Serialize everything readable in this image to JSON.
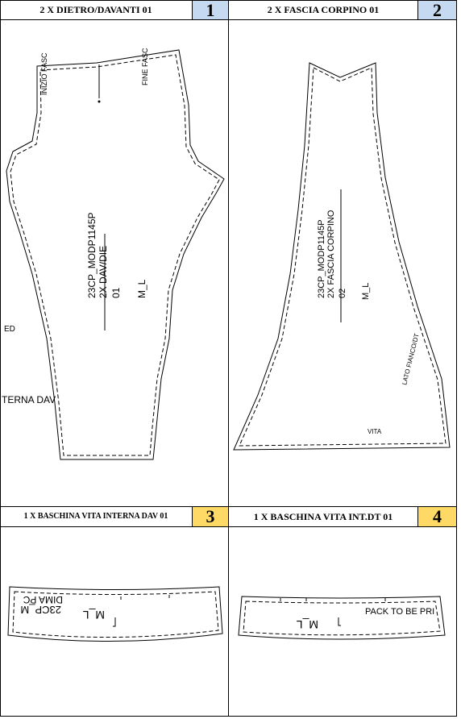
{
  "panels": [
    {
      "title": "2 X DIETRO/DAVANTI 01",
      "number": "1",
      "number_bg": "#c5d9f1"
    },
    {
      "title": "2 X FASCIA CORPINO 01",
      "number": "2",
      "number_bg": "#c5d9f1"
    },
    {
      "title": "1 X BASCHINA VITA INTERNA DAV 01",
      "number": "3",
      "number_bg": "#ffd966"
    },
    {
      "title": "1 X BASCHINA VITA INT.DT 01",
      "number": "4",
      "number_bg": "#ffd966"
    }
  ],
  "pieces": {
    "p1": {
      "inizio": "INIZIO FASC",
      "fine": "FINE FASC",
      "code": "23CP_MODP1145P",
      "name": "2X DAV/DIE",
      "seq": "01",
      "size": "M_L",
      "cut_left_ed": "ED",
      "cut_left_interna": "TERNA DAV"
    },
    "p2": {
      "code": "23CP_MODP1145P",
      "name": "2X FASCIA CORPINO",
      "seq": "02",
      "size": "M_L",
      "lato": "LATO FIANCO/DT",
      "vita": "VITA"
    },
    "p3": {
      "line1": "23CP_M",
      "line2": "DIMA PC",
      "size": "M_L"
    },
    "p4": {
      "pack": "PACK TO BE PRI",
      "size": "M_L"
    }
  }
}
